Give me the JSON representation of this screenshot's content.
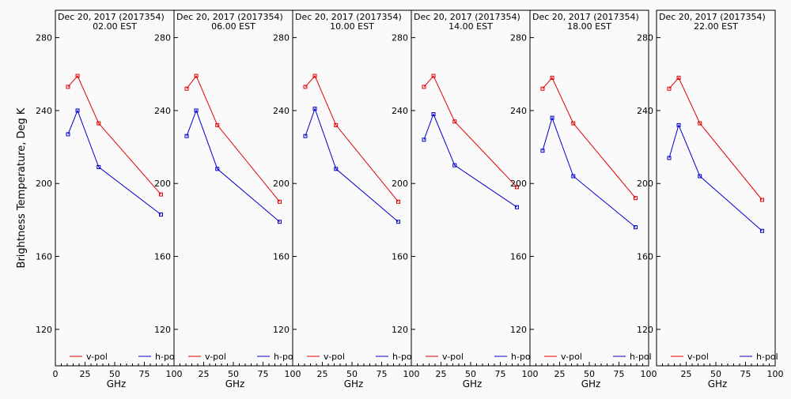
{
  "chart_data": {
    "type": "line",
    "ylabel": "Brightness Temperature, Deg K",
    "xlabel": "GHz",
    "xlim": [
      0,
      100
    ],
    "ylim": [
      100,
      295
    ],
    "x_ticks": [
      0,
      25,
      50,
      75,
      100
    ],
    "y_ticks": [
      120,
      160,
      200,
      240,
      280
    ],
    "x": [
      10.65,
      18.7,
      36.5,
      89.0
    ],
    "legend": [
      "v-pol",
      "h-pol"
    ],
    "series_colors": {
      "v-pol": "#e00000",
      "h-pol": "#0000cc"
    },
    "panels": [
      {
        "title1": "Dec 20, 2017 (2017354)",
        "title2": "02.00 EST",
        "series": [
          {
            "name": "v-pol",
            "values": [
              253,
              259,
              233,
              194
            ]
          },
          {
            "name": "h-pol",
            "values": [
              227,
              240,
              209,
              183
            ]
          }
        ]
      },
      {
        "title1": "Dec 20, 2017 (2017354)",
        "title2": "06.00 EST",
        "series": [
          {
            "name": "v-pol",
            "values": [
              252,
              259,
              232,
              190
            ]
          },
          {
            "name": "h-pol",
            "values": [
              226,
              240,
              208,
              179
            ]
          }
        ]
      },
      {
        "title1": "Dec 20, 2017 (2017354)",
        "title2": "10.00 EST",
        "series": [
          {
            "name": "v-pol",
            "values": [
              253,
              259,
              232,
              190
            ]
          },
          {
            "name": "h-pol",
            "values": [
              226,
              241,
              208,
              179
            ]
          }
        ]
      },
      {
        "title1": "Dec 20, 2017 (2017354)",
        "title2": "14.00 EST",
        "series": [
          {
            "name": "v-pol",
            "values": [
              253,
              259,
              234,
              198
            ]
          },
          {
            "name": "h-pol",
            "values": [
              224,
              238,
              210,
              187
            ]
          }
        ]
      },
      {
        "title1": "Dec 20, 2017 (2017354)",
        "title2": "18.00 EST",
        "series": [
          {
            "name": "v-pol",
            "values": [
              252,
              258,
              233,
              192
            ]
          },
          {
            "name": "h-pol",
            "values": [
              218,
              236,
              204,
              176
            ]
          }
        ]
      },
      {
        "title1": "Dec 20, 2017 (2017354)",
        "title2": "22.00 EST",
        "series": [
          {
            "name": "v-pol",
            "values": [
              252,
              258,
              233,
              191
            ]
          },
          {
            "name": "h-pol",
            "values": [
              214,
              232,
              204,
              174
            ]
          }
        ]
      }
    ]
  }
}
